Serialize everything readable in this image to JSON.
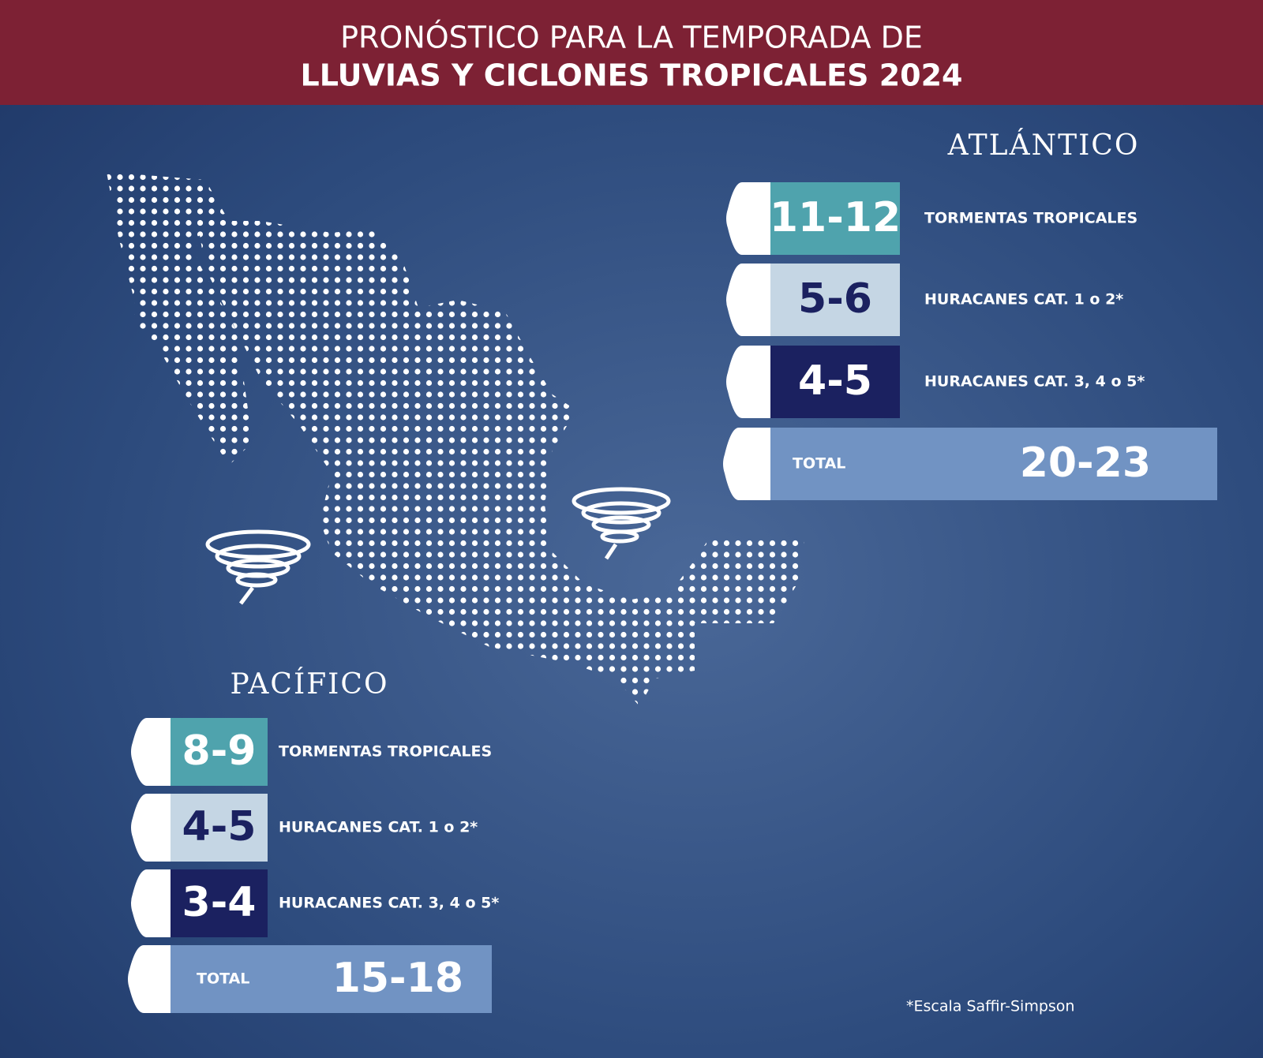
{
  "header": {
    "line1": "PRONÓSTICO PARA LA TEMPORADA DE",
    "line2": "LLUVIAS Y CICLONES TROPICALES 2024"
  },
  "atlantic": {
    "title": "ATLÁNTICO",
    "rows": [
      {
        "value": "11-12",
        "label": "TORMENTAS TROPICALES"
      },
      {
        "value": "5-6",
        "label": "HURACANES CAT. 1 o 2*"
      },
      {
        "value": "4-5",
        "label": "HURACANES CAT. 3, 4 o 5*"
      }
    ],
    "total": {
      "label": "TOTAL",
      "value": "20-23"
    }
  },
  "pacific": {
    "title": "PACÍFICO",
    "rows": [
      {
        "value": "8-9",
        "label": "TORMENTAS TROPICALES"
      },
      {
        "value": "4-5",
        "label": "HURACANES CAT. 1 o 2*"
      },
      {
        "value": "3-4",
        "label": "HURACANES CAT. 3, 4 o 5*"
      }
    ],
    "total": {
      "label": "TOTAL",
      "value": "15-18"
    }
  },
  "footnote": "*Escala Saffir-Simpson"
}
